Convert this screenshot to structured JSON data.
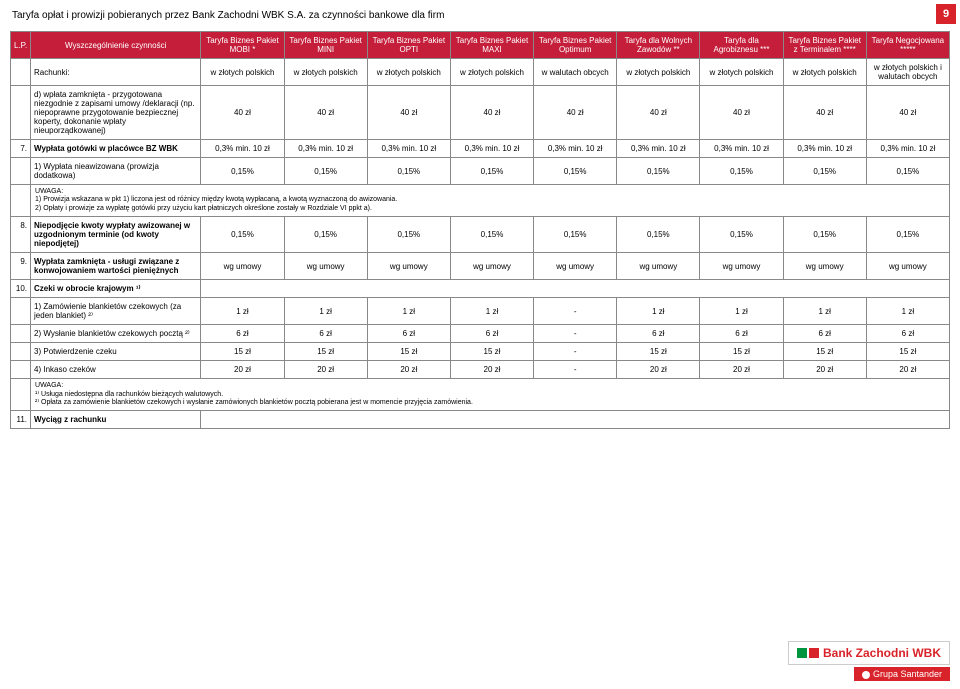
{
  "page_number": "9",
  "title": "Taryfa opłat i prowizji pobieranych przez Bank Zachodni WBK S.A. za czynności bankowe dla firm",
  "header": {
    "lp": "L.P.",
    "desc": "Wyszczególnienie czynności",
    "cols": [
      "Taryfa Biznes Pakiet MOBI *",
      "Taryfa Biznes Pakiet MINI",
      "Taryfa Biznes Pakiet OPTI",
      "Taryfa Biznes Pakiet MAXI",
      "Taryfa Biznes Pakiet Optimum",
      "Taryfa dla Wolnych Zawodów **",
      "Taryfa dla Agrobiznesu ***",
      "Taryfa Biznes Pakiet z Terminalem ****",
      "Taryfa Negocjowana *****"
    ]
  },
  "subhead": {
    "label": "Rachunki:",
    "cols": [
      "w złotych polskich",
      "w złotych polskich",
      "w złotych polskich",
      "w złotych polskich",
      "w walutach obcych",
      "w złotych polskich",
      "w złotych polskich",
      "w złotych polskich",
      "w złotych polskich i walutach obcych"
    ]
  },
  "rows": [
    {
      "lp": "",
      "desc": "d) wpłata zamknięta - przygotowana niezgodnie z zapisami umowy /deklaracji (np. niepoprawne przygotowanie bezpiecznej koperty, dokonanie wpłaty nieuporządkowanej)",
      "vals": [
        "40 zł",
        "40 zł",
        "40 zł",
        "40 zł",
        "40 zł",
        "40 zł",
        "40 zł",
        "40 zł",
        "40 zł"
      ]
    },
    {
      "lp": "7.",
      "bold": true,
      "desc": "Wypłata gotówki w placówce BZ WBK",
      "vals": [
        "0,3% min. 10 zł",
        "0,3% min. 10 zł",
        "0,3% min. 10 zł",
        "0,3% min. 10 zł",
        "0,3% min. 10 zł",
        "0,3% min. 10 zł",
        "0,3% min. 10 zł",
        "0,3% min. 10 zł",
        "0,3% min. 10 zł"
      ]
    },
    {
      "lp": "",
      "desc": "1) Wypłata nieawizowana (prowizja dodatkowa)",
      "vals": [
        "0,15%",
        "0,15%",
        "0,15%",
        "0,15%",
        "0,15%",
        "0,15%",
        "0,15%",
        "0,15%",
        "0,15%"
      ]
    },
    {
      "note": true,
      "text": "UWAGA:\n1) Prowizja wskazana w pkt 1) liczona jest od różnicy między kwotą wypłacaną, a kwotą wyznaczoną do awizowania.\n2) Opłaty i prowizje za wypłatę gotówki przy użyciu kart płatniczych określone zostały w Rozdziale VI ppkt a)."
    },
    {
      "lp": "8.",
      "bold": true,
      "desc": "Niepodjęcie kwoty wypłaty awizowanej w uzgodnionym terminie (od kwoty niepodjętej)",
      "vals": [
        "0,15%",
        "0,15%",
        "0,15%",
        "0,15%",
        "0,15%",
        "0,15%",
        "0,15%",
        "0,15%",
        "0,15%"
      ]
    },
    {
      "lp": "9.",
      "bold": true,
      "desc": "Wypłata zamknięta - usługi związane z konwojowaniem wartości pieniężnych",
      "vals": [
        "wg umowy",
        "wg umowy",
        "wg umowy",
        "wg umowy",
        "wg umowy",
        "wg umowy",
        "wg umowy",
        "wg umowy",
        "wg umowy"
      ]
    },
    {
      "lp": "10.",
      "bold": true,
      "desc": "Czeki w obrocie krajowym ¹⁾",
      "vals": null
    },
    {
      "lp": "",
      "desc": "1) Zamówienie blankietów czekowych (za jeden blankiet) ²⁾",
      "vals": [
        "1 zł",
        "1 zł",
        "1 zł",
        "1 zł",
        "-",
        "1 zł",
        "1 zł",
        "1 zł",
        "1 zł"
      ]
    },
    {
      "lp": "",
      "desc": "2) Wysłanie blankietów czekowych pocztą ²⁾",
      "vals": [
        "6 zł",
        "6 zł",
        "6 zł",
        "6 zł",
        "-",
        "6 zł",
        "6 zł",
        "6 zł",
        "6 zł"
      ]
    },
    {
      "lp": "",
      "desc": "3) Potwierdzenie czeku",
      "vals": [
        "15 zł",
        "15 zł",
        "15 zł",
        "15 zł",
        "-",
        "15 zł",
        "15 zł",
        "15 zł",
        "15 zł"
      ]
    },
    {
      "lp": "",
      "desc": "4) Inkaso czeków",
      "vals": [
        "20 zł",
        "20 zł",
        "20 zł",
        "20 zł",
        "-",
        "20 zł",
        "20 zł",
        "20 zł",
        "20 zł"
      ]
    },
    {
      "note": true,
      "text": "UWAGA:\n¹⁾ Usługa niedostępna dla rachunków bieżących walutowych.\n²⁾ Opłata za zamówienie blankietów czekowych i wysłanie zamówionych blankietów pocztą pobierana jest w momencie przyjęcia zamówienia."
    },
    {
      "lp": "11.",
      "bold": true,
      "desc": "Wyciąg z rachunku",
      "vals": null
    }
  ],
  "logo": {
    "bank": "Bank Zachodni WBK",
    "grupa": "Grupa Santander"
  },
  "colors": {
    "red": "#d8232a",
    "header_red": "#c41e3a",
    "green": "#009640",
    "border": "#888888"
  }
}
